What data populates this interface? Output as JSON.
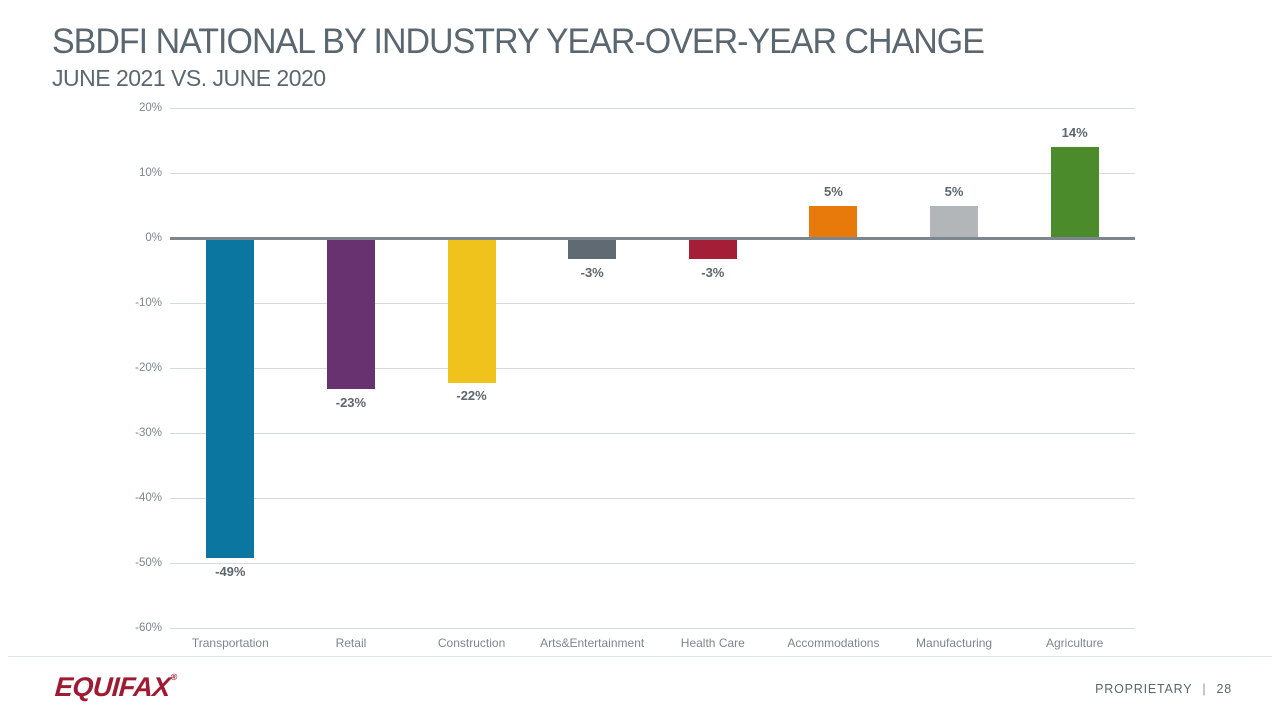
{
  "slide": {
    "title": "SBDFI NATIONAL BY INDUSTRY YEAR-OVER-YEAR CHANGE",
    "subtitle": "JUNE 2021 VS. JUNE 2020"
  },
  "chart_data": {
    "type": "bar",
    "title": "SBDFI NATIONAL BY INDUSTRY YEAR-OVER-YEAR CHANGE",
    "subtitle": "JUNE 2021 VS. JUNE 2020",
    "xlabel": "",
    "ylabel": "",
    "categories": [
      "Transportation",
      "Retail",
      "Construction",
      "Arts&Entertainment",
      "Health Care",
      "Accommodations",
      "Manufacturing",
      "Agriculture"
    ],
    "values": [
      -49,
      -23,
      -22,
      -3,
      -3,
      5,
      5,
      14
    ],
    "value_labels": [
      "-49%",
      "-23%",
      "-22%",
      "-3%",
      "-3%",
      "5%",
      "5%",
      "14%"
    ],
    "bar_colors": [
      "#0b76a0",
      "#683170",
      "#efc31c",
      "#5f6a72",
      "#a31e36",
      "#e8790b",
      "#b3b6b8",
      "#4c8b2b"
    ],
    "y_ticks": [
      {
        "label": "20%",
        "value": 20
      },
      {
        "label": "10%",
        "value": 10
      },
      {
        "label": "0%",
        "value": 0
      },
      {
        "label": "-10%",
        "value": -10
      },
      {
        "label": "-20%",
        "value": -20
      },
      {
        "label": "-30%",
        "value": -30
      },
      {
        "label": "-40%",
        "value": -40
      },
      {
        "label": "-50%",
        "value": -50
      },
      {
        "label": "-60%",
        "value": -60
      }
    ],
    "ylim": [
      -60,
      20
    ],
    "grid": true,
    "legend": "none",
    "zero_line_color": "#7b868f",
    "gridline_color": "#d5dade"
  },
  "footer": {
    "logo_text": "EQUIFAX",
    "logo_registered": "®",
    "logo_color": "#9e1b32",
    "proprietary_label": "PROPRIETARY",
    "separator": "|",
    "page_number": "28"
  }
}
